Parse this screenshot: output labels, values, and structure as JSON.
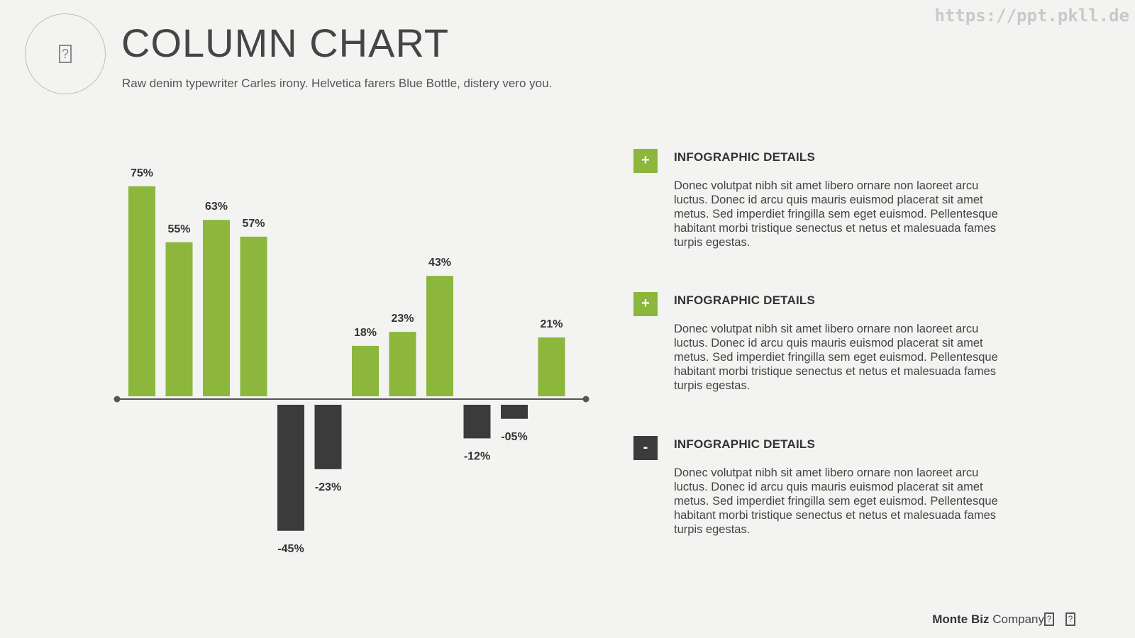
{
  "header": {
    "title": "COLUMN CHART",
    "subtitle": "Raw denim typewriter Carles irony. Helvetica farers Blue Bottle, distery vero you.",
    "watermark": "https://ppt.pkll.de",
    "logo_icon": "placeholder-icon"
  },
  "colors": {
    "positive": "#8cb63c",
    "negative": "#3b3b3b",
    "axis": "#555555"
  },
  "chart_data": {
    "type": "bar",
    "title": "",
    "values": [
      75,
      55,
      63,
      57,
      -45,
      -23,
      18,
      23,
      43,
      -12,
      -5,
      21
    ],
    "labels": [
      "75%",
      "55%",
      "63%",
      "57%",
      "-45%",
      "-23%",
      "18%",
      "23%",
      "43%",
      "-12%",
      "-05%",
      "21%"
    ],
    "ylim": [
      -45,
      75
    ],
    "grid": false,
    "legend": "none"
  },
  "details": [
    {
      "badge": "+",
      "title": "INFOGRAPHIC DETAILS",
      "text": "Donec volutpat nibh sit amet libero ornare non laoreet arcu luctus. Donec id arcu quis mauris euismod placerat sit amet metus. Sed imperdiet fringilla sem eget euismod. Pellentesque habitant morbi tristique senectus et netus et malesuada fames turpis egestas."
    },
    {
      "badge": "+",
      "title": "INFOGRAPHIC DETAILS",
      "text": "Donec volutpat nibh sit amet libero ornare non laoreet arcu luctus. Donec id arcu quis mauris euismod placerat sit amet metus. Sed imperdiet fringilla sem eget euismod. Pellentesque habitant morbi tristique senectus et netus et malesuada fames turpis egestas."
    },
    {
      "badge": "-",
      "title": "INFOGRAPHIC DETAILS",
      "text": "Donec volutpat nibh sit amet libero ornare non laoreet arcu luctus. Donec id arcu quis mauris euismod placerat sit amet metus. Sed imperdiet fringilla sem eget euismod. Pellentesque habitant morbi tristique senectus et netus et malesuada fames turpis egestas."
    }
  ],
  "footer": {
    "brand": "Monte Biz",
    "company": "Company",
    "icons": [
      "placeholder-icon",
      "placeholder-icon"
    ]
  }
}
